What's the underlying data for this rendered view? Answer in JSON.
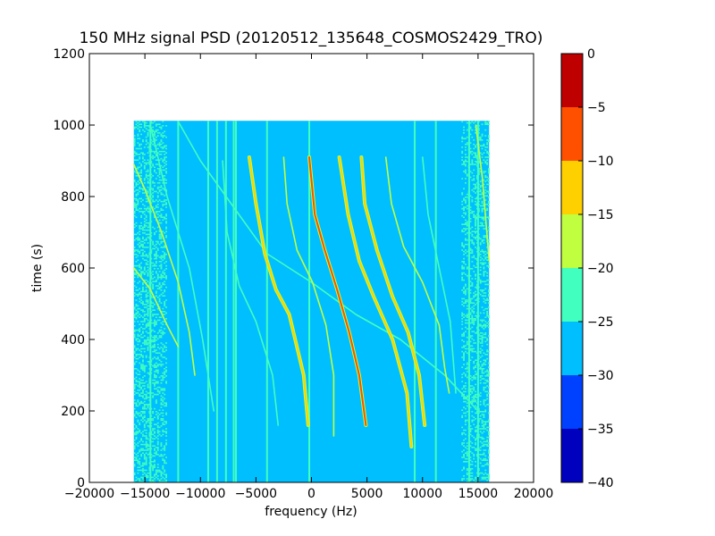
{
  "chart_data": {
    "type": "heatmap",
    "title": "150 MHz signal PSD (20120512_135648_COSMOS2429_TRO)",
    "xlabel": "frequency (Hz)",
    "ylabel": "time (s)",
    "xlim": [
      -20000,
      20000
    ],
    "ylim": [
      0,
      1200
    ],
    "xticks": [
      -20000,
      -15000,
      -10000,
      -5000,
      0,
      5000,
      10000,
      15000,
      20000
    ],
    "xtick_labels": [
      "−20000",
      "−15000",
      "−10000",
      "−5000",
      "0",
      "5000",
      "10000",
      "15000",
      "20000"
    ],
    "yticks": [
      0,
      200,
      400,
      600,
      800,
      1000,
      1200
    ],
    "ytick_labels": [
      "0",
      "200",
      "400",
      "600",
      "800",
      "1000",
      "1200"
    ],
    "data_extent": {
      "freq_min": -16000,
      "freq_max": 16000,
      "time_min": 0,
      "time_max": 1012
    },
    "background_level": -27.5,
    "colorbar": {
      "levels": [
        -40,
        -35,
        -30,
        -25,
        -20,
        -15,
        -10,
        -5,
        0
      ],
      "tick_labels": [
        "−40",
        "−35",
        "−30",
        "−25",
        "−20",
        "−15",
        "−10",
        "−5",
        "0"
      ],
      "colors": [
        "#0000bf",
        "#0040ff",
        "#00bfff",
        "#40ffbf",
        "#bfff40",
        "#ffd000",
        "#ff5000",
        "#bf0000"
      ]
    },
    "vertical_lines": [
      {
        "freq": -14500,
        "level": -22.5
      },
      {
        "freq": -12000,
        "level": -22.5
      },
      {
        "freq": -9300,
        "level": -22.5
      },
      {
        "freq": -8500,
        "level": -22.5
      },
      {
        "freq": -7700,
        "level": -22.5
      },
      {
        "freq": -7000,
        "level": -22.5
      },
      {
        "freq": -6800,
        "level": -22.5
      },
      {
        "freq": -4000,
        "level": -22.5
      },
      {
        "freq": -200,
        "level": -22.5
      },
      {
        "freq": 9300,
        "level": -22.5
      },
      {
        "freq": 11200,
        "level": -22.5
      },
      {
        "freq": 14200,
        "level": -22.5
      },
      {
        "freq": 15000,
        "level": -22.5
      }
    ],
    "tracks": [
      {
        "level": -7.5,
        "points": [
          [
            -200,
            910
          ],
          [
            300,
            750
          ],
          [
            1200,
            650
          ],
          [
            2300,
            540
          ],
          [
            3400,
            420
          ],
          [
            4300,
            300
          ],
          [
            4900,
            160
          ]
        ]
      },
      {
        "level": -12.5,
        "points": [
          [
            -5600,
            910
          ],
          [
            -5000,
            780
          ],
          [
            -4200,
            640
          ],
          [
            -3200,
            540
          ],
          [
            -2000,
            470
          ],
          [
            -700,
            300
          ],
          [
            -300,
            160
          ]
        ]
      },
      {
        "level": -12.5,
        "points": [
          [
            2500,
            910
          ],
          [
            3300,
            750
          ],
          [
            4300,
            620
          ],
          [
            5600,
            520
          ],
          [
            7300,
            400
          ],
          [
            8600,
            250
          ],
          [
            9000,
            100
          ]
        ]
      },
      {
        "level": -12.5,
        "points": [
          [
            4500,
            910
          ],
          [
            4800,
            780
          ],
          [
            5900,
            650
          ],
          [
            7300,
            520
          ],
          [
            8700,
            420
          ],
          [
            9700,
            300
          ],
          [
            10200,
            160
          ]
        ]
      },
      {
        "level": -17.5,
        "points": [
          [
            -2500,
            910
          ],
          [
            -2200,
            780
          ],
          [
            -1300,
            650
          ],
          [
            100,
            560
          ],
          [
            1300,
            440
          ],
          [
            2000,
            300
          ],
          [
            2000,
            130
          ]
        ]
      },
      {
        "level": -17.5,
        "points": [
          [
            6700,
            910
          ],
          [
            7200,
            780
          ],
          [
            8300,
            660
          ],
          [
            10000,
            560
          ],
          [
            11500,
            440
          ],
          [
            12000,
            320
          ],
          [
            12400,
            250
          ]
        ]
      },
      {
        "level": -17.5,
        "points": [
          [
            -16000,
            890
          ],
          [
            -15000,
            820
          ],
          [
            -13500,
            700
          ],
          [
            -12000,
            560
          ],
          [
            -11000,
            420
          ],
          [
            -10500,
            300
          ]
        ]
      },
      {
        "level": -17.5,
        "points": [
          [
            -16000,
            600
          ],
          [
            -14500,
            540
          ],
          [
            -13000,
            440
          ],
          [
            -12000,
            380
          ]
        ]
      },
      {
        "level": -17.5,
        "points": [
          [
            14800,
            1000
          ],
          [
            15400,
            850
          ],
          [
            16000,
            620
          ]
        ]
      },
      {
        "level": -22.5,
        "points": [
          [
            -12000,
            1010
          ],
          [
            -10000,
            900
          ],
          [
            -7000,
            770
          ],
          [
            -4000,
            640
          ],
          [
            0,
            560
          ],
          [
            4000,
            470
          ],
          [
            8000,
            400
          ],
          [
            12000,
            300
          ],
          [
            15000,
            200
          ]
        ]
      },
      {
        "level": -22.5,
        "points": [
          [
            -8000,
            900
          ],
          [
            -7600,
            700
          ],
          [
            -6500,
            550
          ],
          [
            -5000,
            450
          ],
          [
            -3500,
            300
          ],
          [
            -3000,
            160
          ]
        ]
      },
      {
        "level": -22.5,
        "points": [
          [
            -14500,
            1000
          ],
          [
            -13000,
            800
          ],
          [
            -11000,
            600
          ],
          [
            -9800,
            400
          ],
          [
            -8800,
            200
          ]
        ]
      },
      {
        "level": -22.5,
        "points": [
          [
            10000,
            910
          ],
          [
            10500,
            750
          ],
          [
            11500,
            600
          ],
          [
            12500,
            450
          ],
          [
            13000,
            250
          ]
        ]
      }
    ],
    "noise_bands": [
      {
        "freq_min": -16000,
        "freq_max": -13000,
        "level": -22.5,
        "density": 0.35
      },
      {
        "freq_min": 13500,
        "freq_max": 16000,
        "level": -22.5,
        "density": 0.3
      }
    ]
  }
}
